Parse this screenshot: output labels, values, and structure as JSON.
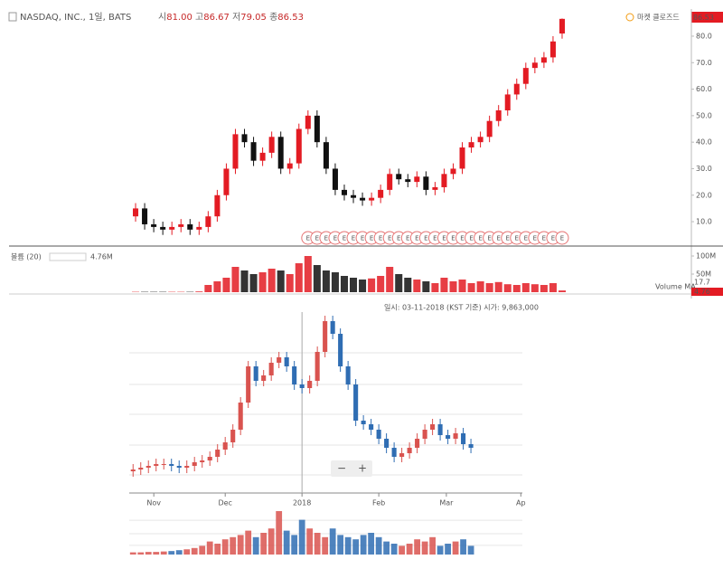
{
  "chart_data": [
    {
      "type": "candlestick",
      "title": "NASDAQ, INC., 1일, BATS",
      "ohlc": [
        {
          "name": "시",
          "value": "81.00"
        },
        {
          "name": "고",
          "value": "86.67"
        },
        {
          "name": "저",
          "value": "79.05"
        },
        {
          "name": "종",
          "value": "86.53"
        }
      ],
      "status": "마켓 클로즈드",
      "last_price": "86.53",
      "up_color": "#e31b23",
      "down_color": "#111111",
      "open": [
        12,
        15,
        9,
        8,
        7,
        8,
        9,
        7,
        8,
        12,
        20,
        30,
        43,
        40,
        33,
        36,
        42,
        30,
        32,
        45,
        50,
        40,
        30,
        22,
        20,
        19,
        18,
        19,
        22,
        28,
        26,
        25,
        27,
        22,
        23,
        28,
        30,
        38,
        40,
        42,
        48,
        52,
        58,
        62,
        68,
        70,
        72,
        81
      ],
      "high": [
        17,
        17,
        11,
        10,
        10,
        11,
        11,
        10,
        14,
        22,
        32,
        45,
        45,
        42,
        38,
        44,
        44,
        34,
        47,
        52,
        52,
        42,
        32,
        24,
        22,
        21,
        21,
        24,
        30,
        30,
        28,
        29,
        29,
        25,
        30,
        32,
        40,
        42,
        44,
        50,
        54,
        60,
        64,
        70,
        72,
        74,
        80,
        86.67
      ],
      "low": [
        10,
        7,
        6,
        5,
        5,
        6,
        5,
        5,
        6,
        10,
        18,
        28,
        38,
        31,
        31,
        34,
        28,
        28,
        30,
        43,
        38,
        28,
        20,
        18,
        17,
        16,
        16,
        17,
        20,
        24,
        23,
        23,
        20,
        20,
        21,
        26,
        28,
        36,
        38,
        40,
        46,
        50,
        56,
        60,
        66,
        68,
        70,
        79.05
      ],
      "close": [
        15,
        9,
        8,
        7,
        8,
        9,
        7,
        8,
        12,
        20,
        30,
        43,
        40,
        33,
        36,
        42,
        30,
        32,
        45,
        50,
        40,
        30,
        22,
        20,
        19,
        18,
        19,
        22,
        28,
        26,
        25,
        27,
        22,
        23,
        28,
        30,
        38,
        40,
        42,
        48,
        52,
        58,
        62,
        68,
        70,
        72,
        78,
        86.53
      ],
      "xlim": [
        -0.5,
        47.5
      ],
      "ylim": [
        0.8,
        87.5
      ],
      "yticks": [
        {
          "value": 10,
          "label": "10.0"
        },
        {
          "value": 20,
          "label": "20.0"
        },
        {
          "value": 30,
          "label": "30.0"
        },
        {
          "value": 40,
          "label": "40.0"
        },
        {
          "value": 50,
          "label": "50.0"
        },
        {
          "value": 60,
          "label": "60.0"
        },
        {
          "value": 70,
          "label": "70.0"
        },
        {
          "value": 80,
          "label": "80.0"
        }
      ],
      "earnings_label": "E",
      "earnings_x": [
        19,
        20,
        21,
        22,
        23,
        24,
        25,
        26,
        27,
        28,
        29,
        30,
        31,
        32,
        33,
        34,
        35,
        36,
        37,
        38,
        39,
        40,
        41,
        42,
        43,
        44,
        45,
        46,
        47
      ]
    },
    {
      "type": "bar",
      "title": "볼륨 (20)",
      "current_label": "4.76M",
      "ma_name": "Volume MA",
      "ma_value": "17.7",
      "last_value": "4.76",
      "values": [
        1,
        1,
        1,
        1,
        1,
        1,
        1,
        2,
        20,
        30,
        40,
        70,
        60,
        50,
        55,
        65,
        60,
        50,
        80,
        100,
        75,
        60,
        55,
        45,
        40,
        35,
        38,
        45,
        70,
        50,
        40,
        35,
        30,
        25,
        40,
        30,
        35,
        25,
        30,
        25,
        28,
        22,
        20,
        25,
        22,
        20,
        25,
        4.76
      ],
      "xlim": [
        -0.5,
        47.5
      ],
      "ylim": [
        0,
        112.5
      ],
      "yticks": [
        {
          "value": 50,
          "label": "50M"
        },
        {
          "value": 100,
          "label": "100M"
        }
      ]
    },
    {
      "type": "candlestick",
      "tooltip": "일시: 03-11-2018 (KST 기준) 시가: 9,863,000",
      "zoom_out": "−",
      "zoom_in": "+",
      "up_color": "#d9534f",
      "down_color": "#2f6db3",
      "open": [
        12,
        13,
        14,
        15,
        16,
        16,
        15,
        14,
        15,
        17,
        18,
        20,
        24,
        28,
        35,
        50,
        70,
        62,
        65,
        72,
        75,
        70,
        60,
        58,
        62,
        78,
        95,
        88,
        70,
        60,
        40,
        38,
        35,
        30,
        25,
        20,
        22,
        25,
        30,
        35,
        38,
        32,
        30,
        33,
        27
      ],
      "high": [
        16,
        17,
        18,
        19,
        19,
        19,
        18,
        18,
        20,
        21,
        23,
        27,
        31,
        38,
        53,
        73,
        73,
        68,
        75,
        78,
        78,
        73,
        63,
        65,
        81,
        98,
        98,
        91,
        73,
        63,
        43,
        41,
        38,
        33,
        28,
        25,
        28,
        33,
        38,
        41,
        41,
        35,
        36,
        36,
        30
      ],
      "low": [
        9,
        10,
        11,
        12,
        13,
        12,
        11,
        11,
        12,
        14,
        15,
        17,
        21,
        25,
        32,
        47,
        59,
        59,
        62,
        69,
        67,
        57,
        55,
        55,
        59,
        75,
        85,
        67,
        57,
        37,
        35,
        32,
        27,
        22,
        17,
        17,
        19,
        22,
        27,
        32,
        29,
        27,
        27,
        24,
        22
      ],
      "close": [
        13,
        14,
        15,
        16,
        16,
        15,
        14,
        15,
        17,
        18,
        20,
        24,
        28,
        35,
        50,
        70,
        62,
        65,
        72,
        75,
        70,
        60,
        58,
        62,
        78,
        95,
        88,
        70,
        60,
        40,
        38,
        35,
        30,
        25,
        20,
        22,
        25,
        30,
        35,
        38,
        32,
        30,
        33,
        27,
        25
      ],
      "xlim": [
        -0.5,
        50.7
      ],
      "ylim": [
        0,
        100
      ],
      "gridlines": [
        10,
        26.5,
        43.5,
        60,
        77.5
      ],
      "crosshair_x": 22,
      "xticks": [
        {
          "value": 2.7,
          "label": "Nov"
        },
        {
          "value": 12,
          "label": "Dec"
        },
        {
          "value": 22,
          "label": "2018"
        },
        {
          "value": 32,
          "label": "Feb"
        },
        {
          "value": 40.8,
          "label": "Mar"
        },
        {
          "value": 50.5,
          "label": "Ap"
        }
      ]
    },
    {
      "type": "bar",
      "values": [
        5,
        5,
        6,
        6,
        7,
        8,
        10,
        12,
        15,
        20,
        30,
        25,
        35,
        40,
        45,
        55,
        40,
        50,
        60,
        100,
        55,
        45,
        80,
        60,
        50,
        40,
        60,
        45,
        40,
        35,
        45,
        50,
        40,
        30,
        25,
        20,
        25,
        35,
        30,
        40,
        20,
        25,
        30,
        35,
        20
      ],
      "xlim": [
        -0.5,
        50.7
      ],
      "ylim": [
        0,
        100
      ],
      "gridlines": [
        21,
        48,
        79
      ]
    }
  ]
}
